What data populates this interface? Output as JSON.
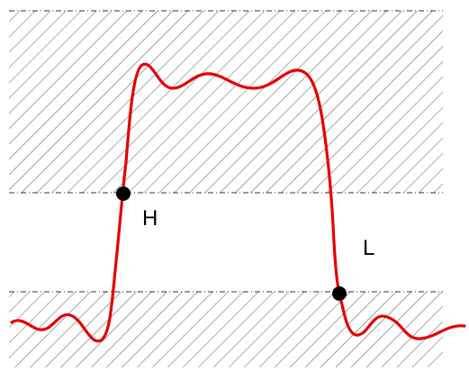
{
  "labels": {
    "high_point": "H",
    "low_point": "L"
  },
  "colors": {
    "signal": "#e60000",
    "hatch": "#555555",
    "threshold_line": "#333333",
    "marker": "#000000",
    "background": "#ffffff"
  }
}
